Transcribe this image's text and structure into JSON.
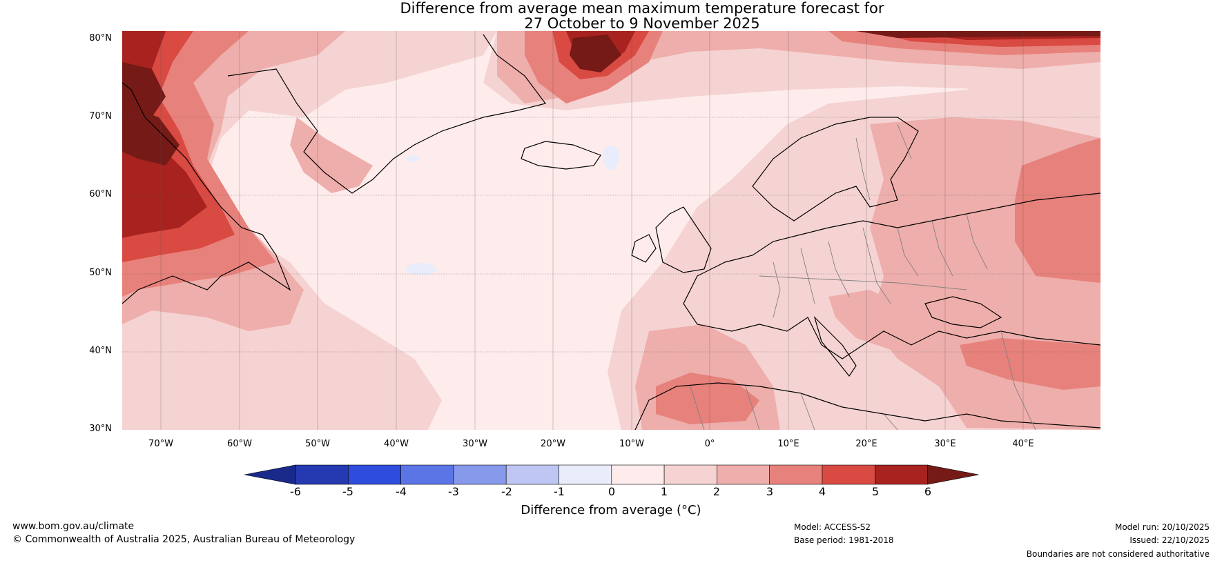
{
  "title": {
    "line1": "Difference from average mean maximum temperature forecast for",
    "line2": "27 October to 9 November 2025"
  },
  "axes": {
    "latitudes": [
      "80°N",
      "70°N",
      "60°N",
      "50°N",
      "40°N",
      "30°N"
    ],
    "longitudes": [
      "70°W",
      "60°W",
      "50°W",
      "40°W",
      "30°W",
      "20°W",
      "10°W",
      "0°",
      "10°E",
      "20°E",
      "30°E",
      "40°E"
    ]
  },
  "colorbar": {
    "title": "Difference from average (°C)",
    "labels": [
      "-6",
      "-5",
      "-4",
      "-3",
      "-2",
      "-1",
      "0",
      "1",
      "2",
      "3",
      "4",
      "5",
      "6"
    ],
    "colors": [
      "#1a2a8c",
      "#2539b0",
      "#2f4ddd",
      "#5c75e6",
      "#8799ea",
      "#bec6f3",
      "#e9ecfb",
      "#fdeceb",
      "#f5d3d2",
      "#eeaeab",
      "#e7817b",
      "#d84a42",
      "#a8231f",
      "#751a16"
    ]
  },
  "map_colors": {
    "c0": "#fdeceb",
    "c1": "#f5d3d2",
    "c2": "#eeaeab",
    "c3": "#e7817b",
    "c4": "#d84a42",
    "c5": "#a8231f",
    "c6": "#751a16",
    "cneg": "#e9ecfb"
  },
  "footer": {
    "website": "www.bom.gov.au/climate",
    "copyright": "© Commonwealth of Australia 2025, Australian Bureau of Meteorology",
    "model": "Model: ACCESS-S2",
    "base_period": "Base period: 1981-2018",
    "model_run": "Model run: 20/10/2025",
    "issued": "Issued: 22/10/2025",
    "disclaimer": "Boundaries are not considered authoritative"
  }
}
